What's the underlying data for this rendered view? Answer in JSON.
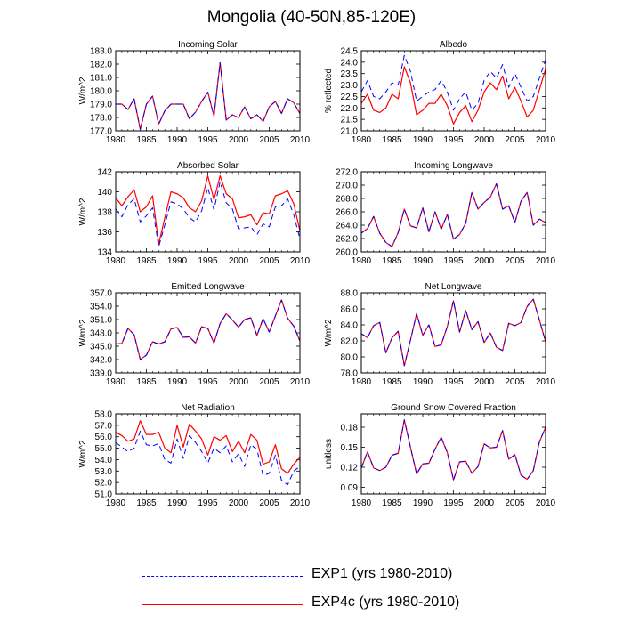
{
  "figure": {
    "title": "Mongolia (40-50N,85-120E)"
  },
  "legend": [
    {
      "label": "EXP1 (yrs 1980-2010)",
      "color": "#0000ff",
      "style": "dashed"
    },
    {
      "label": "EXP4c (yrs 1980-2010)",
      "color": "#ff0000",
      "style": "solid"
    }
  ],
  "chart_data": [
    {
      "type": "line",
      "title": "Incoming Solar",
      "ylabel": "W/m^2",
      "xlabel": "",
      "xlim": [
        1980,
        2010
      ],
      "xticks": [
        1980,
        1985,
        1990,
        1995,
        2000,
        2005,
        2010
      ],
      "ylim": [
        177.0,
        183.0
      ],
      "yticks": [
        "177.0",
        "178.0",
        "179.0",
        "180.0",
        "181.0",
        "182.0",
        "183.0"
      ],
      "series": [
        {
          "name": "EXP1 (yrs 1980-2010)",
          "values": [
            179.0,
            179.0,
            178.6,
            179.4,
            177.1,
            179.0,
            179.6,
            177.5,
            178.5,
            179.0,
            179.0,
            179.0,
            177.9,
            178.4,
            179.2,
            179.9,
            178.1,
            182.1,
            177.8,
            178.2,
            178.0,
            178.8,
            177.9,
            178.2,
            177.7,
            178.8,
            179.2,
            178.3,
            179.4,
            179.1,
            178.3
          ]
        },
        {
          "name": "EXP4c (yrs 1980-2010)",
          "values": [
            179.0,
            179.0,
            178.6,
            179.4,
            177.1,
            179.0,
            179.6,
            177.5,
            178.5,
            179.0,
            179.0,
            179.0,
            177.9,
            178.4,
            179.2,
            179.9,
            178.1,
            182.1,
            177.8,
            178.2,
            178.0,
            178.8,
            177.9,
            178.2,
            177.7,
            178.8,
            179.2,
            178.3,
            179.4,
            179.1,
            178.3
          ]
        }
      ]
    },
    {
      "type": "line",
      "title": "Albedo",
      "ylabel": "% reflected",
      "xlabel": "",
      "xlim": [
        1980,
        2010
      ],
      "xticks": [
        1980,
        1985,
        1990,
        1995,
        2000,
        2005,
        2010
      ],
      "ylim": [
        21.0,
        24.5
      ],
      "yticks": [
        "21.0",
        "21.5",
        "22.0",
        "22.5",
        "23.0",
        "23.5",
        "24.0",
        "24.5"
      ],
      "series": [
        {
          "name": "EXP1 (yrs 1980-2010)",
          "values": [
            22.7,
            23.2,
            22.5,
            22.4,
            22.7,
            23.1,
            23.0,
            24.3,
            23.6,
            22.3,
            22.5,
            22.7,
            22.8,
            23.2,
            22.7,
            21.9,
            22.4,
            22.7,
            21.9,
            22.2,
            23.2,
            23.6,
            23.3,
            23.9,
            22.9,
            23.5,
            22.9,
            22.3,
            22.5,
            23.3,
            24.1
          ]
        },
        {
          "name": "EXP4c (yrs 1980-2010)",
          "values": [
            22.2,
            22.6,
            21.9,
            21.8,
            22.0,
            22.6,
            22.4,
            23.8,
            23.1,
            21.7,
            21.9,
            22.2,
            22.2,
            22.6,
            22.1,
            21.3,
            21.8,
            22.1,
            21.4,
            21.9,
            22.7,
            23.1,
            22.8,
            23.4,
            22.4,
            22.9,
            22.3,
            21.6,
            21.9,
            22.8,
            23.7
          ]
        }
      ]
    },
    {
      "type": "line",
      "title": "Absorbed Solar",
      "ylabel": "W/m^2",
      "xlabel": "",
      "xlim": [
        1980,
        2010
      ],
      "xticks": [
        1980,
        1985,
        1990,
        1995,
        2000,
        2005,
        2010
      ],
      "ylim": [
        134,
        142
      ],
      "yticks": [
        "134",
        "136",
        "138",
        "140",
        "142"
      ],
      "series": [
        {
          "name": "EXP1 (yrs 1980-2010)",
          "values": [
            138.3,
            137.5,
            138.7,
            139.3,
            137.0,
            137.6,
            138.4,
            134.5,
            136.7,
            139.0,
            138.8,
            138.3,
            137.4,
            137.0,
            138.1,
            140.4,
            138.2,
            141.0,
            138.9,
            138.3,
            136.3,
            136.4,
            136.5,
            135.7,
            136.8,
            136.5,
            138.5,
            138.6,
            139.3,
            137.7,
            135.3
          ]
        },
        {
          "name": "EXP4c (yrs 1980-2010)",
          "values": [
            139.4,
            138.6,
            139.5,
            140.2,
            138.0,
            138.5,
            139.6,
            134.8,
            137.4,
            140.0,
            139.8,
            139.4,
            138.4,
            138.0,
            139.1,
            141.6,
            139.2,
            141.6,
            139.8,
            139.3,
            137.4,
            137.5,
            137.7,
            136.7,
            137.9,
            137.8,
            139.6,
            139.8,
            140.1,
            138.8,
            136.1
          ]
        }
      ]
    },
    {
      "type": "line",
      "title": "Incoming Longwave",
      "ylabel": "",
      "xlabel": "",
      "xlim": [
        1980,
        2010
      ],
      "xticks": [
        1980,
        1985,
        1990,
        1995,
        2000,
        2005,
        2010
      ],
      "ylim": [
        260.0,
        272.0
      ],
      "yticks": [
        "260.0",
        "262.0",
        "264.0",
        "266.0",
        "268.0",
        "270.0",
        "272.0"
      ],
      "series": [
        {
          "name": "EXP1 (yrs 1980-2010)",
          "values": [
            262.8,
            263.5,
            265.3,
            262.8,
            261.4,
            260.8,
            262.9,
            266.4,
            263.9,
            263.6,
            266.6,
            263.0,
            266.0,
            263.4,
            265.6,
            261.9,
            262.6,
            264.3,
            268.9,
            266.4,
            267.4,
            268.2,
            270.2,
            266.4,
            266.9,
            264.4,
            267.6,
            268.9,
            264.0,
            264.9,
            264.4
          ]
        },
        {
          "name": "EXP4c (yrs 1980-2010)",
          "values": [
            262.8,
            263.5,
            265.3,
            262.8,
            261.4,
            260.8,
            262.9,
            266.4,
            263.9,
            263.6,
            266.6,
            263.0,
            266.0,
            263.4,
            265.6,
            261.9,
            262.6,
            264.3,
            268.9,
            266.4,
            267.4,
            268.2,
            270.2,
            266.4,
            266.9,
            264.4,
            267.6,
            268.9,
            264.0,
            264.9,
            264.4
          ]
        }
      ]
    },
    {
      "type": "line",
      "title": "Emitted Longwave",
      "ylabel": "W/m^2",
      "xlabel": "",
      "xlim": [
        1980,
        2010
      ],
      "xticks": [
        1980,
        1985,
        1990,
        1995,
        2000,
        2005,
        2010
      ],
      "ylim": [
        339.0,
        357.0
      ],
      "yticks": [
        "339.0",
        "342.0",
        "345.0",
        "348.0",
        "351.0",
        "354.0",
        "357.0"
      ],
      "series": [
        {
          "name": "EXP1 (yrs 1980-2010)",
          "values": [
            345.5,
            345.6,
            349.0,
            347.6,
            342.0,
            343.0,
            346.0,
            345.5,
            346.0,
            348.9,
            349.2,
            347.0,
            347.1,
            345.7,
            349.4,
            349.0,
            345.7,
            350.1,
            352.3,
            350.9,
            349.3,
            351.0,
            351.4,
            347.4,
            351.2,
            348.2,
            351.8,
            355.4,
            351.3,
            349.5,
            346.2
          ]
        },
        {
          "name": "EXP4c (yrs 1980-2010)",
          "values": [
            345.5,
            345.6,
            349.0,
            347.6,
            342.0,
            343.0,
            346.0,
            345.5,
            346.0,
            348.9,
            349.2,
            347.0,
            347.1,
            345.7,
            349.4,
            349.0,
            345.7,
            350.1,
            352.3,
            350.9,
            349.3,
            351.0,
            351.4,
            347.4,
            351.2,
            348.2,
            351.8,
            355.4,
            351.3,
            349.5,
            346.2
          ]
        }
      ]
    },
    {
      "type": "line",
      "title": "Net Longwave",
      "ylabel": "W/m^2",
      "xlabel": "",
      "xlim": [
        1980,
        2010
      ],
      "xticks": [
        1980,
        1985,
        1990,
        1995,
        2000,
        2005,
        2010
      ],
      "ylim": [
        78.0,
        88.0
      ],
      "yticks": [
        "78.0",
        "80.0",
        "82.0",
        "84.0",
        "86.0",
        "88.0"
      ],
      "series": [
        {
          "name": "EXP1 (yrs 1980-2010)",
          "values": [
            82.9,
            82.4,
            83.9,
            84.3,
            80.5,
            82.4,
            83.2,
            78.9,
            82.1,
            85.4,
            82.7,
            84.0,
            81.3,
            81.5,
            83.8,
            87.0,
            83.1,
            85.8,
            83.4,
            84.4,
            81.8,
            83.0,
            81.2,
            80.8,
            84.2,
            83.9,
            84.3,
            86.3,
            87.2,
            84.6,
            81.9
          ]
        },
        {
          "name": "EXP4c (yrs 1980-2010)",
          "values": [
            82.9,
            82.4,
            83.9,
            84.3,
            80.5,
            82.4,
            83.2,
            78.9,
            82.1,
            85.4,
            82.7,
            84.0,
            81.3,
            81.5,
            83.8,
            87.0,
            83.1,
            85.8,
            83.4,
            84.4,
            81.8,
            83.0,
            81.2,
            80.8,
            84.2,
            83.9,
            84.3,
            86.3,
            87.2,
            84.6,
            81.9
          ]
        }
      ]
    },
    {
      "type": "line",
      "title": "Net Radiation",
      "ylabel": "W/m^2",
      "xlabel": "",
      "xlim": [
        1980,
        2010
      ],
      "xticks": [
        1980,
        1985,
        1990,
        1995,
        2000,
        2005,
        2010
      ],
      "ylim": [
        51.0,
        58.0
      ],
      "yticks": [
        "51.0",
        "52.0",
        "53.0",
        "54.0",
        "55.0",
        "56.0",
        "57.0",
        "58.0"
      ],
      "series": [
        {
          "name": "EXP1 (yrs 1980-2010)",
          "values": [
            55.5,
            55.1,
            54.7,
            55.0,
            56.5,
            55.3,
            55.2,
            55.4,
            54.0,
            53.7,
            55.8,
            54.1,
            56.1,
            55.5,
            54.7,
            53.7,
            55.0,
            54.6,
            55.2,
            53.8,
            54.5,
            53.4,
            55.3,
            54.9,
            52.6,
            52.8,
            54.4,
            52.2,
            51.8,
            53.0,
            53.4
          ]
        },
        {
          "name": "EXP4c (yrs 1980-2010)",
          "values": [
            56.4,
            56.1,
            55.6,
            55.8,
            57.4,
            56.2,
            56.2,
            56.4,
            55.0,
            54.6,
            57.0,
            55.1,
            57.1,
            56.5,
            55.8,
            54.4,
            56.0,
            55.7,
            56.1,
            54.7,
            55.6,
            54.6,
            56.2,
            55.7,
            53.6,
            53.8,
            55.3,
            53.2,
            52.8,
            53.6,
            54.2
          ]
        }
      ]
    },
    {
      "type": "line",
      "title": "Ground Snow Covered Fraction",
      "ylabel": "unitless",
      "xlabel": "",
      "xlim": [
        1980,
        2010
      ],
      "xticks": [
        1980,
        1985,
        1990,
        1995,
        2000,
        2005,
        2010
      ],
      "ylim": [
        0.08,
        0.2
      ],
      "yticks": [
        "0.09",
        "0.12",
        "0.15",
        "0.18"
      ],
      "series": [
        {
          "name": "EXP1 (yrs 1980-2010)",
          "values": [
            0.119,
            0.143,
            0.119,
            0.115,
            0.12,
            0.138,
            0.141,
            0.191,
            0.15,
            0.11,
            0.125,
            0.126,
            0.147,
            0.165,
            0.142,
            0.101,
            0.128,
            0.129,
            0.111,
            0.121,
            0.155,
            0.149,
            0.15,
            0.175,
            0.132,
            0.139,
            0.108,
            0.102,
            0.115,
            0.158,
            0.18
          ]
        },
        {
          "name": "EXP4c (yrs 1980-2010)",
          "values": [
            0.119,
            0.143,
            0.119,
            0.115,
            0.12,
            0.138,
            0.141,
            0.191,
            0.15,
            0.11,
            0.125,
            0.126,
            0.147,
            0.165,
            0.142,
            0.101,
            0.128,
            0.129,
            0.111,
            0.121,
            0.155,
            0.149,
            0.15,
            0.175,
            0.132,
            0.139,
            0.108,
            0.102,
            0.115,
            0.158,
            0.18
          ]
        }
      ]
    }
  ]
}
